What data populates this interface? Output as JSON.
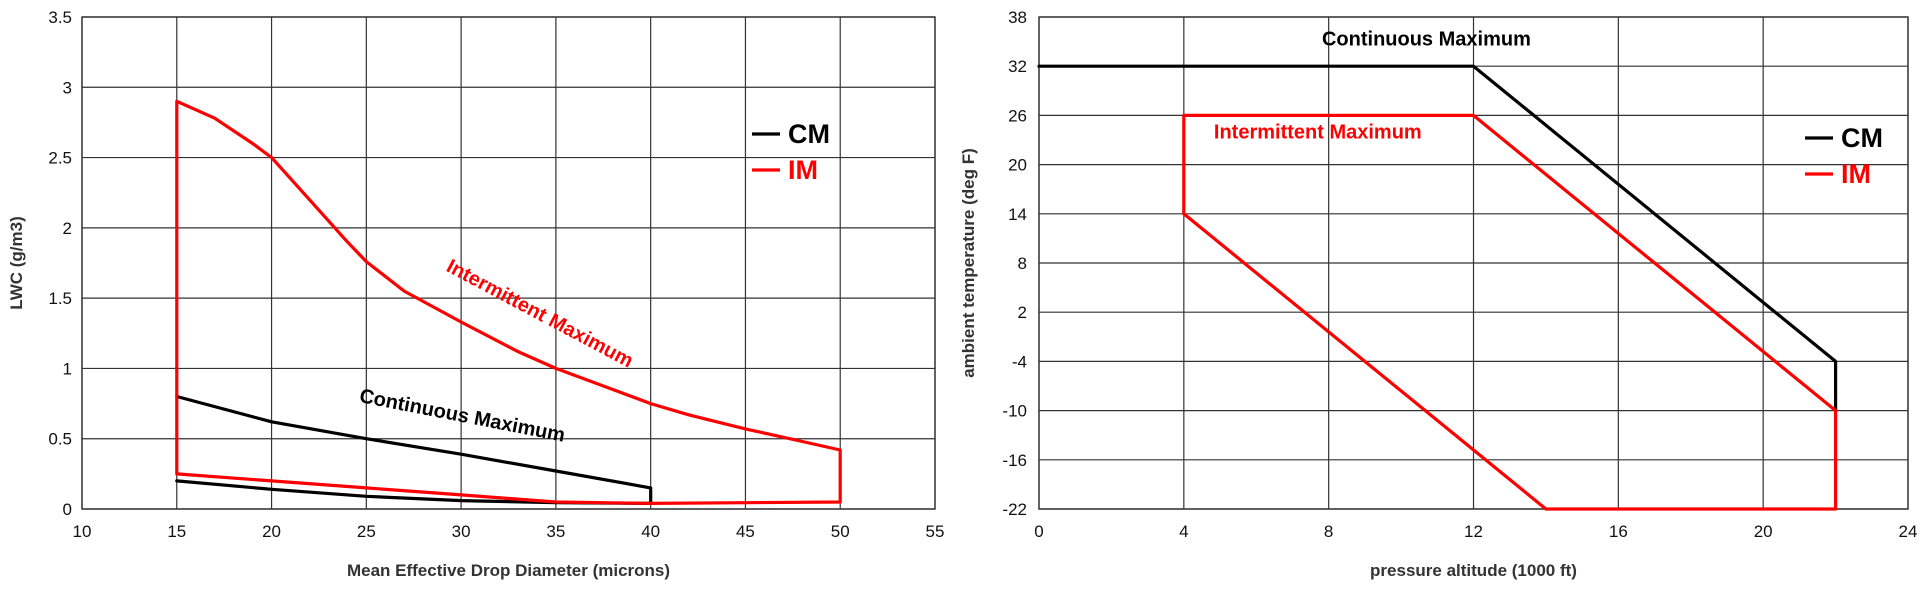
{
  "chart_data": [
    {
      "type": "line",
      "title": "",
      "xlabel": "Mean Effective Drop Diameter (microns)",
      "ylabel": "LWC (g/m3)",
      "xlim": [
        10,
        55
      ],
      "ylim": [
        0,
        3.5
      ],
      "xticks": [
        10,
        15,
        20,
        25,
        30,
        35,
        40,
        45,
        50,
        55
      ],
      "yticks": [
        0,
        0.5,
        1,
        1.5,
        2,
        2.5,
        3,
        3.5
      ],
      "grid": true,
      "legend": {
        "placement": "right",
        "entries": [
          {
            "label": "CM",
            "color": "#000000"
          },
          {
            "label": "IM",
            "color": "#ff0000"
          }
        ]
      },
      "series": [
        {
          "name": "CM",
          "color": "#000000",
          "points": [
            [
              15,
              0.8
            ],
            [
              20,
              0.62
            ],
            [
              25,
              0.5
            ],
            [
              30,
              0.39
            ],
            [
              35,
              0.27
            ],
            [
              40,
              0.15
            ],
            [
              40,
              0.04
            ],
            [
              35,
              0.045
            ],
            [
              30,
              0.06
            ],
            [
              25,
              0.09
            ],
            [
              20,
              0.14
            ],
            [
              15,
              0.2
            ]
          ]
        },
        {
          "name": "IM",
          "color": "#ff0000",
          "points": [
            [
              15,
              0.25
            ],
            [
              15,
              2.9
            ],
            [
              17,
              2.78
            ],
            [
              19,
              2.6
            ],
            [
              20,
              2.5
            ],
            [
              22,
              2.2
            ],
            [
              24,
              1.9
            ],
            [
              25,
              1.76
            ],
            [
              27,
              1.55
            ],
            [
              30,
              1.33
            ],
            [
              33,
              1.12
            ],
            [
              35,
              1.0
            ],
            [
              38,
              0.85
            ],
            [
              40,
              0.75
            ],
            [
              42,
              0.67
            ],
            [
              45,
              0.57
            ],
            [
              48,
              0.48
            ],
            [
              50,
              0.42
            ],
            [
              50,
              0.05
            ],
            [
              45,
              0.045
            ],
            [
              40,
              0.04
            ],
            [
              35,
              0.05
            ],
            [
              30,
              0.1
            ],
            [
              25,
              0.15
            ],
            [
              20,
              0.2
            ],
            [
              15,
              0.25
            ]
          ]
        }
      ],
      "annotations": [
        {
          "text": "Intermittent Maximum",
          "x": 34,
          "y": 1.35,
          "angle": 28,
          "color": "#ff0000"
        },
        {
          "text": "Continuous Maximum",
          "x": 30,
          "y": 0.62,
          "angle": 11,
          "color": "#000000"
        }
      ]
    },
    {
      "type": "line",
      "title": "",
      "xlabel": "pressure altitude (1000 ft)",
      "ylabel": "ambient temperature (deg F)",
      "xlim": [
        0,
        24
      ],
      "ylim": [
        -22,
        38
      ],
      "xticks": [
        0,
        4,
        8,
        12,
        16,
        20,
        24
      ],
      "yticks": [
        -22,
        -16,
        -10,
        -4,
        2,
        8,
        14,
        20,
        26,
        32,
        38
      ],
      "grid": true,
      "legend": {
        "placement": "right",
        "entries": [
          {
            "label": "CM",
            "color": "#000000"
          },
          {
            "label": "IM",
            "color": "#ff0000"
          }
        ]
      },
      "series": [
        {
          "name": "CM",
          "color": "#000000",
          "points": [
            [
              0,
              32
            ],
            [
              12,
              32
            ],
            [
              22,
              -4
            ],
            [
              22,
              -10
            ]
          ]
        },
        {
          "name": "IM",
          "color": "#ff0000",
          "points": [
            [
              4,
              14
            ],
            [
              4,
              26
            ],
            [
              12,
              26
            ],
            [
              22,
              -10
            ],
            [
              22,
              -22
            ],
            [
              14,
              -22
            ],
            [
              4,
              14
            ]
          ]
        }
      ],
      "annotations": [
        {
          "text": "Continuous Maximum",
          "x": 10.7,
          "y": 34.5,
          "angle": 0,
          "color": "#000000"
        },
        {
          "text": "Intermittent Maximum",
          "x": 7.7,
          "y": 23.2,
          "angle": 0,
          "color": "#ff0000"
        }
      ]
    }
  ]
}
